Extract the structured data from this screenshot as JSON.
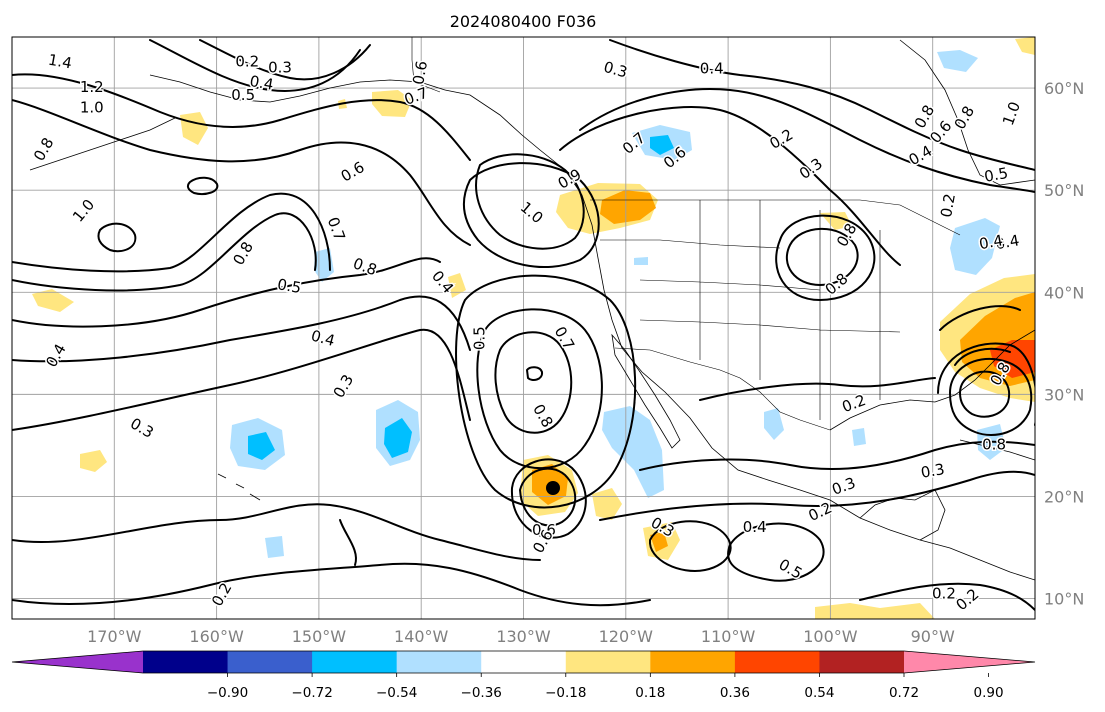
{
  "title": "2024080400 F036",
  "map": {
    "projection": "PlateCarree",
    "lon_range": [
      -180,
      -80
    ],
    "lat_range": [
      8,
      65
    ],
    "lon_ticks": [
      {
        "lon": -170,
        "label": "170°W"
      },
      {
        "lon": -160,
        "label": "160°W"
      },
      {
        "lon": -150,
        "label": "150°W"
      },
      {
        "lon": -140,
        "label": "140°W"
      },
      {
        "lon": -130,
        "label": "130°W"
      },
      {
        "lon": -120,
        "label": "120°W"
      },
      {
        "lon": -110,
        "label": "110°W"
      },
      {
        "lon": -100,
        "label": "100°W"
      },
      {
        "lon": -90,
        "label": "90°W"
      }
    ],
    "lat_ticks": [
      {
        "lat": 60,
        "label": "60°N"
      },
      {
        "lat": 50,
        "label": "50°N"
      },
      {
        "lat": 40,
        "label": "40°N"
      },
      {
        "lat": 30,
        "label": "30°N"
      },
      {
        "lat": 20,
        "label": "20°N"
      },
      {
        "lat": 10,
        "label": "10°N"
      }
    ],
    "gridlines": true,
    "fill_colors": {
      "lt_-0.36": "#00bfff",
      "-0.36_-0.18": "#b0e0ff",
      "0.18_0.36": "#ffe680",
      "0.36_0.54": "#ffa500",
      "gt_0.54": "#ff4500"
    },
    "contour_labels": [
      {
        "text": "1.4",
        "lon": -175.3,
        "lat": 62.6,
        "rot": 10
      },
      {
        "text": "1.2",
        "lon": -172.2,
        "lat": 60.1,
        "rot": 0
      },
      {
        "text": "1.0",
        "lon": -172.2,
        "lat": 58.1,
        "rot": 0
      },
      {
        "text": "0.8",
        "lon": -176.9,
        "lat": 54.0,
        "rot": -60
      },
      {
        "text": "1.0",
        "lon": -173.0,
        "lat": 48.0,
        "rot": -50
      },
      {
        "text": "0.2",
        "lon": -157.0,
        "lat": 62.6,
        "rot": 0
      },
      {
        "text": "0.3",
        "lon": -153.8,
        "lat": 62.0,
        "rot": 0
      },
      {
        "text": "0.4",
        "lon": -155.6,
        "lat": 60.5,
        "rot": 10
      },
      {
        "text": "0.5",
        "lon": -157.4,
        "lat": 59.3,
        "rot": 0
      },
      {
        "text": "0.6",
        "lon": -140.1,
        "lat": 61.5,
        "rot": -80
      },
      {
        "text": "0.7",
        "lon": -140.5,
        "lat": 59.2,
        "rot": -20
      },
      {
        "text": "0.6",
        "lon": -146.7,
        "lat": 51.8,
        "rot": -30
      },
      {
        "text": "0.7",
        "lon": -148.3,
        "lat": 46.2,
        "rot": 70
      },
      {
        "text": "0.8",
        "lon": -157.4,
        "lat": 43.8,
        "rot": -60
      },
      {
        "text": "0.8",
        "lon": -145.5,
        "lat": 42.5,
        "rot": 20
      },
      {
        "text": "0.5",
        "lon": -152.9,
        "lat": 40.6,
        "rot": 10
      },
      {
        "text": "0.4",
        "lon": -137.9,
        "lat": 41.0,
        "rot": 50
      },
      {
        "text": "0.4",
        "lon": -149.6,
        "lat": 35.5,
        "rot": 15
      },
      {
        "text": "0.4",
        "lon": -175.7,
        "lat": 33.8,
        "rot": -60
      },
      {
        "text": "0.3",
        "lon": -147.6,
        "lat": 30.8,
        "rot": -60
      },
      {
        "text": "0.3",
        "lon": -167.3,
        "lat": 26.7,
        "rot": 30
      },
      {
        "text": "0.5",
        "lon": -134.3,
        "lat": 35.5,
        "rot": -90
      },
      {
        "text": "0.3",
        "lon": -121.0,
        "lat": 61.8,
        "rot": 15
      },
      {
        "text": "0.4",
        "lon": -111.6,
        "lat": 61.9,
        "rot": 0
      },
      {
        "text": "0.9",
        "lon": -125.5,
        "lat": 51.1,
        "rot": -30
      },
      {
        "text": "1.0",
        "lon": -129.2,
        "lat": 47.8,
        "rot": 40
      },
      {
        "text": "0.7",
        "lon": -119.2,
        "lat": 54.6,
        "rot": -40
      },
      {
        "text": "0.6",
        "lon": -115.2,
        "lat": 53.2,
        "rot": -40
      },
      {
        "text": "0.2",
        "lon": -104.8,
        "lat": 55.0,
        "rot": -30
      },
      {
        "text": "0.3",
        "lon": -101.9,
        "lat": 52.1,
        "rot": -35
      },
      {
        "text": "0.7",
        "lon": -126.0,
        "lat": 35.5,
        "rot": 60
      },
      {
        "text": "0.8",
        "lon": -128.1,
        "lat": 27.9,
        "rot": 60
      },
      {
        "text": "0.6",
        "lon": -128.0,
        "lat": 16.7,
        "rot": 0
      },
      {
        "text": "0.6",
        "lon": -128.1,
        "lat": 15.6,
        "rot": -60
      },
      {
        "text": "0.3",
        "lon": -116.4,
        "lat": 17.0,
        "rot": 30
      },
      {
        "text": "0.4",
        "lon": -107.4,
        "lat": 17.0,
        "rot": 0
      },
      {
        "text": "0.5",
        "lon": -103.9,
        "lat": 12.9,
        "rot": 30
      },
      {
        "text": "0.8",
        "lon": -98.4,
        "lat": 45.6,
        "rot": -60
      },
      {
        "text": "0.8",
        "lon": -99.4,
        "lat": 40.8,
        "rot": -40
      },
      {
        "text": "0.2",
        "lon": -97.7,
        "lat": 29.1,
        "rot": -20
      },
      {
        "text": "0.3",
        "lon": -98.7,
        "lat": 21.0,
        "rot": -20
      },
      {
        "text": "0.2",
        "lon": -101.0,
        "lat": 18.5,
        "rot": -25
      },
      {
        "text": "0.3",
        "lon": -90.0,
        "lat": 22.5,
        "rot": -10
      },
      {
        "text": "0.8",
        "lon": -90.8,
        "lat": 57.2,
        "rot": -60
      },
      {
        "text": "0.6",
        "lon": -89.2,
        "lat": 55.7,
        "rot": -50
      },
      {
        "text": "0.4",
        "lon": -91.2,
        "lat": 53.4,
        "rot": -30
      },
      {
        "text": "0.5",
        "lon": -83.8,
        "lat": 51.5,
        "rot": -10
      },
      {
        "text": "0.8",
        "lon": -86.9,
        "lat": 57.1,
        "rot": -60
      },
      {
        "text": "1.0",
        "lon": -82.3,
        "lat": 57.5,
        "rot": -70
      },
      {
        "text": "0.2",
        "lon": -88.5,
        "lat": 48.5,
        "rot": -80
      },
      {
        "text": "0.4",
        "lon": -82.7,
        "lat": 44.9,
        "rot": -10
      },
      {
        "text": "0.4",
        "lon": -84.3,
        "lat": 44.9,
        "rot": -10
      },
      {
        "text": "0.8",
        "lon": -83.4,
        "lat": 32.0,
        "rot": -60
      },
      {
        "text": "0.8",
        "lon": -84.0,
        "lat": 25.1,
        "rot": 0
      },
      {
        "text": "0.2",
        "lon": -88.9,
        "lat": 10.5,
        "rot": 0
      },
      {
        "text": "0.2",
        "lon": -86.6,
        "lat": 9.9,
        "rot": -40
      },
      {
        "text": "0.2",
        "lon": -159.5,
        "lat": 10.4,
        "rot": -60
      }
    ]
  },
  "colorbar": {
    "colors": [
      "#9932cc",
      "#00008b",
      "#3a5fcd",
      "#00bfff",
      "#b0e0ff",
      "#ffffff",
      "#ffe680",
      "#ffa500",
      "#ff4500",
      "#b22222",
      "#ff88aa"
    ],
    "tick_labels": [
      "−0.90",
      "−0.72",
      "−0.54",
      "−0.36",
      "−0.18",
      "0.18",
      "0.36",
      "0.54",
      "0.72",
      "0.90"
    ]
  }
}
